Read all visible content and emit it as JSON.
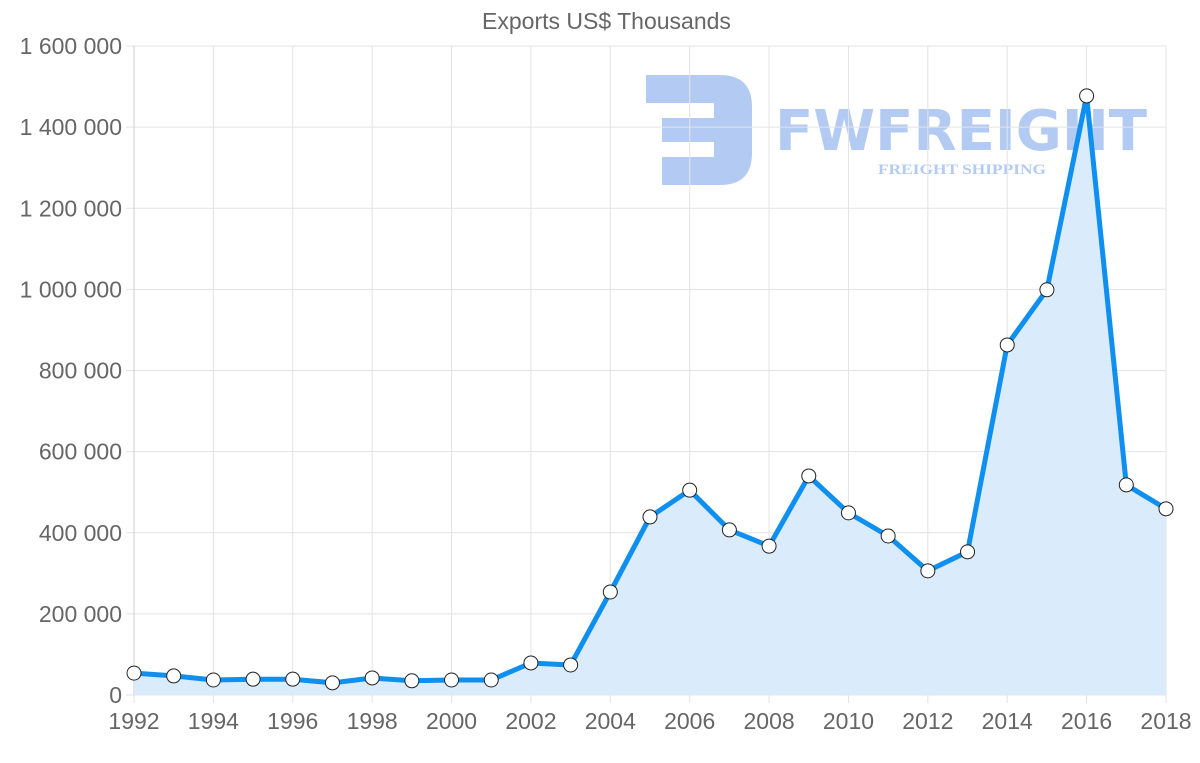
{
  "chart_data": {
    "type": "area",
    "title": "Exports US$ Thousands",
    "xlabel": "",
    "ylabel": "",
    "ylim": [
      0,
      1600000
    ],
    "grid": true,
    "legend": "none",
    "yticks": [
      "0",
      "200 000",
      "400 000",
      "600 000",
      "800 000",
      "1 000 000",
      "1 200 000",
      "1 400 000",
      "1 600 000"
    ],
    "xticks": [
      "1992",
      "1994",
      "1996",
      "1998",
      "2000",
      "2002",
      "2004",
      "2006",
      "2008",
      "2010",
      "2012",
      "2014",
      "2016",
      "2018"
    ],
    "x": [
      1992,
      1993,
      1994,
      1995,
      1996,
      1997,
      1998,
      1999,
      2000,
      2001,
      2002,
      2003,
      2004,
      2005,
      2006,
      2007,
      2008,
      2009,
      2010,
      2011,
      2012,
      2013,
      2014,
      2015,
      2016,
      2017,
      2018
    ],
    "series": [
      {
        "name": "Exports US$ Thousands",
        "values": [
          54000,
          47000,
          37000,
          39000,
          39000,
          30000,
          42000,
          35000,
          37000,
          37000,
          79000,
          74000,
          254000,
          439000,
          505000,
          407000,
          367000,
          540000,
          449000,
          392000,
          306000,
          353000,
          863000,
          999000,
          1477000,
          518000,
          459000
        ],
        "line_color": "#0f8ff0",
        "fill_color": "#d8ebfc"
      }
    ]
  },
  "watermark": {
    "brand": "FWFREIGHT",
    "tagline": "FREIGHT SHIPPING",
    "color": "#b3cbf2"
  }
}
